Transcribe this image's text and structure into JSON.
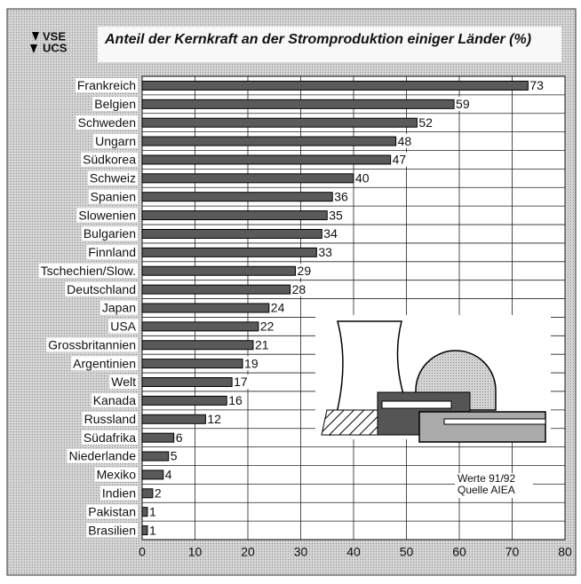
{
  "chart_data": {
    "type": "hbar",
    "title": "Anteil der Kernkraft an der Stromproduktion einiger Länder (%)",
    "logo": [
      "VSE",
      "UCS"
    ],
    "annotation": [
      "Werte 91/92",
      "Quelle AIEA"
    ],
    "categories": [
      "Frankreich",
      "Belgien",
      "Schweden",
      "Ungarn",
      "Südkorea",
      "Schweiz",
      "Spanien",
      "Slowenien",
      "Bulgarien",
      "Finnland",
      "Tschechien/Slow.",
      "Deutschland",
      "Japan",
      "USA",
      "Grossbritannien",
      "Argentinien",
      "Welt",
      "Kanada",
      "Russland",
      "Südafrika",
      "Niederlande",
      "Mexiko",
      "Indien",
      "Pakistan",
      "Brasilien"
    ],
    "values": [
      73,
      59,
      52,
      48,
      47,
      40,
      36,
      35,
      34,
      33,
      29,
      28,
      24,
      22,
      21,
      19,
      17,
      16,
      12,
      6,
      5,
      4,
      2,
      1,
      1
    ],
    "color": "#5a5a5a",
    "xlim": [
      0,
      80
    ],
    "xticks": [
      0,
      10,
      20,
      30,
      40,
      50,
      60,
      70,
      80
    ],
    "grid": true
  }
}
